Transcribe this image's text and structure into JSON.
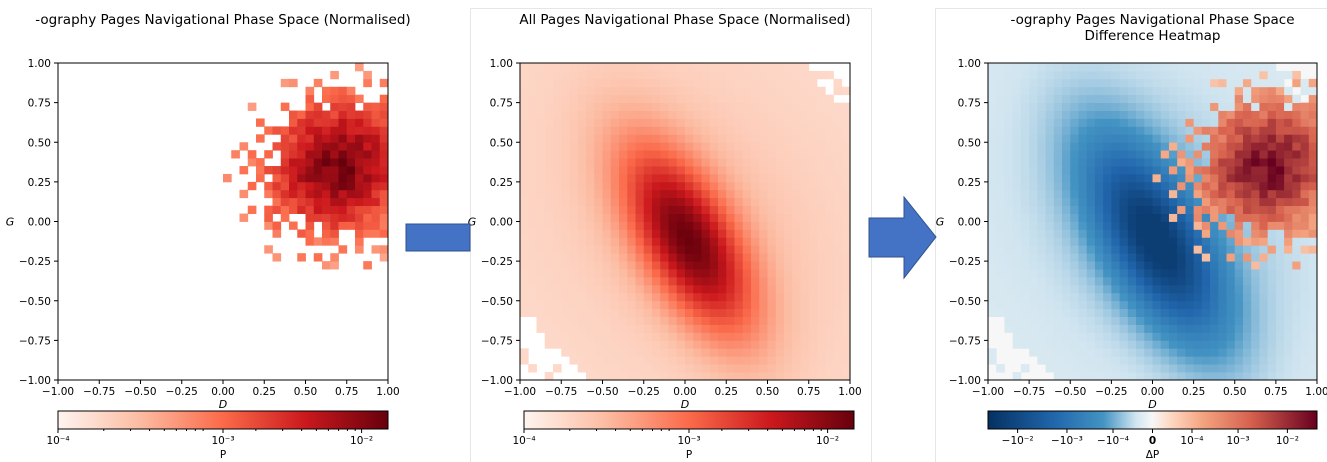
{
  "colors": {
    "reds_low": "#fff5f0",
    "reds_mid": "#fb6a4a",
    "reds_high": "#67000d",
    "blue_high": "#08306b",
    "blue_mid": "#4393c3",
    "neutral": "#f7f7f7",
    "arrow": "#4472c4",
    "arrow_stroke": "#2f528f"
  },
  "arrows": [
    {
      "name": "right-arrow-1",
      "icon": "right-arrow-icon"
    },
    {
      "name": "right-arrow-2",
      "icon": "right-arrow-icon"
    }
  ],
  "chart_data": [
    {
      "type": "heatmap",
      "title": "-ography Pages Navigational Phase Space (Normalised)",
      "xlabel": "D",
      "ylabel": "G",
      "xlim": [
        -1.0,
        1.0
      ],
      "ylim": [
        -1.0,
        1.0
      ],
      "xticks": [
        "−1.00",
        "−0.75",
        "−0.50",
        "−0.25",
        "0.00",
        "0.25",
        "0.50",
        "0.75",
        "1.00"
      ],
      "yticks": [
        "1.00",
        "0.75",
        "0.50",
        "0.25",
        "0.00",
        "−0.25",
        "−0.50",
        "−0.75",
        "−1.00"
      ],
      "colorbar": {
        "label": "P",
        "scale": "log",
        "ticks": [
          "10⁻⁴",
          "10⁻³",
          "10⁻²"
        ],
        "cmap": "Reds"
      },
      "grid": false,
      "bins": 40,
      "density": "sparse cluster centred near D≈0.7, G≈0.35"
    },
    {
      "type": "heatmap",
      "title": "All Pages Navigational Phase Space (Normalised)",
      "xlabel": "D",
      "ylabel": "G",
      "xlim": [
        -1.0,
        1.0
      ],
      "ylim": [
        -1.0,
        1.0
      ],
      "xticks": [
        "−1.00",
        "−0.75",
        "−0.50",
        "−0.25",
        "0.00",
        "0.25",
        "0.50",
        "0.75",
        "1.00"
      ],
      "yticks": [
        "1.00",
        "0.75",
        "0.50",
        "0.25",
        "0.00",
        "−0.25",
        "−0.50",
        "−0.75",
        "−1.00"
      ],
      "colorbar": {
        "label": "P",
        "scale": "log",
        "ticks": [
          "10⁻⁴",
          "10⁻³",
          "10⁻²"
        ],
        "cmap": "Reds"
      },
      "grid": false,
      "bins": 40,
      "density": "tilted elongated blob, peak near D≈0.0, G≈−0.1"
    },
    {
      "type": "heatmap",
      "title": "-ography Pages Navigational Phase Space",
      "subtitle": "Difference Heatmap",
      "xlabel": "D",
      "ylabel": "G",
      "xlim": [
        -1.0,
        1.0
      ],
      "ylim": [
        -1.0,
        1.0
      ],
      "xticks": [
        "−1.00",
        "−0.75",
        "−0.50",
        "−0.25",
        "0.00",
        "0.25",
        "0.50",
        "0.75",
        "1.00"
      ],
      "yticks": [
        "1.00",
        "0.75",
        "0.50",
        "0.25",
        "0.00",
        "−0.25",
        "−0.50",
        "−0.75",
        "−1.00"
      ],
      "colorbar": {
        "label": "ΔP",
        "scale": "symlog",
        "ticks": [
          "−10⁻²",
          "−10⁻³",
          "−10⁻⁴",
          "0",
          "10⁻⁴",
          "10⁻³",
          "10⁻²"
        ],
        "cmap": "RdBu_r"
      },
      "grid": false,
      "bins": 40,
      "density": "negative (blue) over all-pages blob, positive (red) over -ography cluster"
    }
  ]
}
